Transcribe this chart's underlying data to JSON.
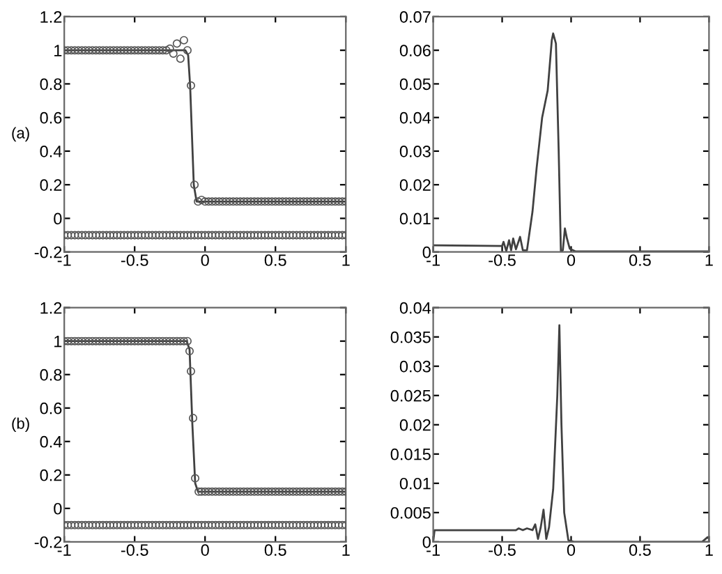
{
  "chart_data": [
    {
      "type": "line",
      "annotations": [
        "(a)"
      ],
      "xlim": [
        -1,
        1
      ],
      "ylim": [
        -0.2,
        1.2
      ],
      "xticks": [
        -1,
        -0.5,
        0,
        0.5,
        1
      ],
      "yticks": [
        -0.2,
        0,
        0.2,
        0.4,
        0.6,
        0.8,
        1,
        1.2
      ],
      "grid": false,
      "legend": false,
      "series": [
        {
          "type": "line",
          "color": "#404040",
          "x": [
            -1,
            -0.14,
            -0.12,
            -0.106,
            -0.08,
            -0.06,
            -0.05,
            1
          ],
          "values": [
            1,
            1,
            0.97,
            0.79,
            0.2,
            0.1,
            0.1,
            0.1
          ]
        },
        {
          "type": "scatter",
          "marker": "circle",
          "color": "#555555",
          "x": [
            -1,
            -0.975,
            -0.95,
            -0.925,
            -0.9,
            -0.875,
            -0.85,
            -0.825,
            -0.8,
            -0.775,
            -0.75,
            -0.725,
            -0.7,
            -0.675,
            -0.65,
            -0.625,
            -0.6,
            -0.575,
            -0.55,
            -0.525,
            -0.5,
            -0.475,
            -0.45,
            -0.425,
            -0.4,
            -0.375,
            -0.35,
            -0.325,
            -0.3,
            -0.275,
            -0.25,
            -0.225,
            -0.2,
            -0.175,
            -0.15,
            -0.125,
            -0.1,
            -0.075,
            -0.05,
            -0.025,
            0,
            0.025,
            0.05,
            0.075,
            0.1,
            0.125,
            0.15,
            0.175,
            0.2,
            0.225,
            0.25,
            0.275,
            0.3,
            0.325,
            0.35,
            0.375,
            0.4,
            0.425,
            0.45,
            0.475,
            0.5,
            0.525,
            0.55,
            0.575,
            0.6,
            0.625,
            0.65,
            0.675,
            0.7,
            0.725,
            0.75,
            0.775,
            0.8,
            0.825,
            0.85,
            0.875,
            0.9,
            0.925,
            0.95,
            0.975,
            1
          ],
          "values": [
            1,
            1,
            1,
            1,
            1,
            1,
            1,
            1,
            1,
            1,
            1,
            1,
            1,
            1,
            1,
            1,
            1,
            1,
            1,
            1,
            1,
            1,
            1,
            1,
            1,
            1,
            1,
            1,
            1,
            1.0,
            1.01,
            0.98,
            1.04,
            0.95,
            1.06,
            1.0,
            0.79,
            0.2,
            0.1,
            0.11,
            0.1,
            0.1,
            0.1,
            0.1,
            0.1,
            0.1,
            0.1,
            0.1,
            0.1,
            0.1,
            0.1,
            0.1,
            0.1,
            0.1,
            0.1,
            0.1,
            0.1,
            0.1,
            0.1,
            0.1,
            0.1,
            0.1,
            0.1,
            0.1,
            0.1,
            0.1,
            0.1,
            0.1,
            0.1,
            0.1,
            0.1,
            0.1,
            0.1,
            0.1,
            0.1,
            0.1,
            0.1,
            0.1,
            0.1,
            0.1,
            0.1
          ]
        },
        {
          "type": "scatter",
          "marker": "circle",
          "color": "#555555",
          "x": [
            -1,
            -0.975,
            -0.95,
            -0.925,
            -0.9,
            -0.875,
            -0.85,
            -0.825,
            -0.8,
            -0.775,
            -0.75,
            -0.725,
            -0.7,
            -0.675,
            -0.65,
            -0.625,
            -0.6,
            -0.575,
            -0.55,
            -0.525,
            -0.5,
            -0.475,
            -0.45,
            -0.425,
            -0.4,
            -0.375,
            -0.35,
            -0.325,
            -0.3,
            -0.275,
            -0.25,
            -0.225,
            -0.2,
            -0.175,
            -0.15,
            -0.125,
            -0.1,
            -0.075,
            -0.05,
            -0.025,
            0,
            0.025,
            0.05,
            0.075,
            0.1,
            0.125,
            0.15,
            0.175,
            0.2,
            0.225,
            0.25,
            0.275,
            0.3,
            0.325,
            0.35,
            0.375,
            0.4,
            0.425,
            0.45,
            0.475,
            0.5,
            0.525,
            0.55,
            0.575,
            0.6,
            0.625,
            0.65,
            0.675,
            0.7,
            0.725,
            0.75,
            0.775,
            0.8,
            0.825,
            0.85,
            0.875,
            0.9,
            0.925,
            0.95,
            0.975,
            1
          ],
          "values": [
            -0.1,
            -0.1,
            -0.1,
            -0.1,
            -0.1,
            -0.1,
            -0.1,
            -0.1,
            -0.1,
            -0.1,
            -0.1,
            -0.1,
            -0.1,
            -0.1,
            -0.1,
            -0.1,
            -0.1,
            -0.1,
            -0.1,
            -0.1,
            -0.1,
            -0.1,
            -0.1,
            -0.1,
            -0.1,
            -0.1,
            -0.1,
            -0.1,
            -0.1,
            -0.1,
            -0.1,
            -0.1,
            -0.1,
            -0.1,
            -0.1,
            -0.1,
            -0.1,
            -0.1,
            -0.1,
            -0.1,
            -0.1,
            -0.1,
            -0.1,
            -0.1,
            -0.1,
            -0.1,
            -0.1,
            -0.1,
            -0.1,
            -0.1,
            -0.1,
            -0.1,
            -0.1,
            -0.1,
            -0.1,
            -0.1,
            -0.1,
            -0.1,
            -0.1,
            -0.1,
            -0.1,
            -0.1,
            -0.1,
            -0.1,
            -0.1,
            -0.1,
            -0.1,
            -0.1,
            -0.1,
            -0.1,
            -0.1,
            -0.1,
            -0.1,
            -0.1,
            -0.1,
            -0.1,
            -0.1,
            -0.1,
            -0.1,
            -0.1,
            -0.1
          ]
        }
      ]
    },
    {
      "type": "line",
      "xlim": [
        -1,
        1
      ],
      "ylim": [
        0,
        0.07
      ],
      "xticks": [
        -1,
        -0.5,
        0,
        0.5,
        1
      ],
      "yticks": [
        0,
        0.01,
        0.02,
        0.03,
        0.04,
        0.05,
        0.06,
        0.07
      ],
      "grid": false,
      "legend": false,
      "series": [
        {
          "type": "line",
          "color": "#404040",
          "x": [
            -1,
            -0.5,
            -0.49,
            -0.47,
            -0.45,
            -0.435,
            -0.42,
            -0.4,
            -0.37,
            -0.35,
            -0.32,
            -0.28,
            -0.25,
            -0.21,
            -0.17,
            -0.14,
            -0.13,
            -0.11,
            -0.09,
            -0.074,
            -0.06,
            -0.045,
            -0.03,
            -0.01,
            0.03,
            1
          ],
          "values": [
            0.002,
            0.0018,
            0.003,
            0.0003,
            0.0035,
            0.0005,
            0.004,
            0.0008,
            0.0045,
            0.0005,
            0.0005,
            0.012,
            0.025,
            0.04,
            0.048,
            0.063,
            0.065,
            0.062,
            0.03,
            0,
            0.0005,
            0.007,
            0.004,
            0.001,
            0.0002,
            0.0002
          ]
        }
      ]
    },
    {
      "type": "line",
      "annotations": [
        "(b)"
      ],
      "xlim": [
        -1,
        1
      ],
      "ylim": [
        -0.2,
        1.2
      ],
      "xticks": [
        -1,
        -0.5,
        0,
        0.5,
        1
      ],
      "yticks": [
        -0.2,
        0,
        0.2,
        0.4,
        0.6,
        0.8,
        1,
        1.2
      ],
      "grid": false,
      "legend": false,
      "series": [
        {
          "type": "line",
          "color": "#404040",
          "x": [
            -1,
            -0.13,
            -0.11,
            -0.09,
            -0.07,
            -0.05,
            1
          ],
          "values": [
            1,
            1,
            0.95,
            0.5,
            0.15,
            0.1,
            0.1
          ]
        },
        {
          "type": "scatter",
          "marker": "circle",
          "color": "#555555",
          "x": [
            -1,
            -0.975,
            -0.95,
            -0.925,
            -0.9,
            -0.875,
            -0.85,
            -0.825,
            -0.8,
            -0.775,
            -0.75,
            -0.725,
            -0.7,
            -0.675,
            -0.65,
            -0.625,
            -0.6,
            -0.575,
            -0.55,
            -0.525,
            -0.5,
            -0.475,
            -0.45,
            -0.425,
            -0.4,
            -0.375,
            -0.35,
            -0.325,
            -0.3,
            -0.275,
            -0.25,
            -0.225,
            -0.2,
            -0.175,
            -0.15,
            -0.125,
            -0.11,
            -0.1,
            -0.085,
            -0.07,
            -0.045,
            -0.025,
            0,
            0.025,
            0.05,
            0.075,
            0.1,
            0.125,
            0.15,
            0.175,
            0.2,
            0.225,
            0.25,
            0.275,
            0.3,
            0.325,
            0.35,
            0.375,
            0.4,
            0.425,
            0.45,
            0.475,
            0.5,
            0.525,
            0.55,
            0.575,
            0.6,
            0.625,
            0.65,
            0.675,
            0.7,
            0.725,
            0.75,
            0.775,
            0.8,
            0.825,
            0.85,
            0.875,
            0.9,
            0.925,
            0.95,
            0.975,
            1
          ],
          "values": [
            1,
            1,
            1,
            1,
            1,
            1,
            1,
            1,
            1,
            1,
            1,
            1,
            1,
            1,
            1,
            1,
            1,
            1,
            1,
            1,
            1,
            1,
            1,
            1,
            1,
            1,
            1,
            1,
            1,
            1,
            1,
            1,
            1,
            1,
            1,
            1.0,
            0.94,
            0.82,
            0.54,
            0.18,
            0.1,
            0.1,
            0.1,
            0.1,
            0.1,
            0.1,
            0.1,
            0.1,
            0.1,
            0.1,
            0.1,
            0.1,
            0.1,
            0.1,
            0.1,
            0.1,
            0.1,
            0.1,
            0.1,
            0.1,
            0.1,
            0.1,
            0.1,
            0.1,
            0.1,
            0.1,
            0.1,
            0.1,
            0.1,
            0.1,
            0.1,
            0.1,
            0.1,
            0.1,
            0.1,
            0.1,
            0.1,
            0.1,
            0.1,
            0.1,
            0.1,
            0.1,
            0.1
          ]
        },
        {
          "type": "scatter",
          "marker": "circle",
          "color": "#555555",
          "x": [
            -1,
            -0.975,
            -0.95,
            -0.925,
            -0.9,
            -0.875,
            -0.85,
            -0.825,
            -0.8,
            -0.775,
            -0.75,
            -0.725,
            -0.7,
            -0.675,
            -0.65,
            -0.625,
            -0.6,
            -0.575,
            -0.55,
            -0.525,
            -0.5,
            -0.475,
            -0.45,
            -0.425,
            -0.4,
            -0.375,
            -0.35,
            -0.325,
            -0.3,
            -0.275,
            -0.25,
            -0.225,
            -0.2,
            -0.175,
            -0.15,
            -0.125,
            -0.1,
            -0.075,
            -0.05,
            -0.025,
            0,
            0.025,
            0.05,
            0.075,
            0.1,
            0.125,
            0.15,
            0.175,
            0.2,
            0.225,
            0.25,
            0.275,
            0.3,
            0.325,
            0.35,
            0.375,
            0.4,
            0.425,
            0.45,
            0.475,
            0.5,
            0.525,
            0.55,
            0.575,
            0.6,
            0.625,
            0.65,
            0.675,
            0.7,
            0.725,
            0.75,
            0.775,
            0.8,
            0.825,
            0.85,
            0.875,
            0.9,
            0.925,
            0.95,
            0.975,
            1
          ],
          "values": [
            -0.1,
            -0.1,
            -0.1,
            -0.1,
            -0.1,
            -0.1,
            -0.1,
            -0.1,
            -0.1,
            -0.1,
            -0.1,
            -0.1,
            -0.1,
            -0.1,
            -0.1,
            -0.1,
            -0.1,
            -0.1,
            -0.1,
            -0.1,
            -0.1,
            -0.1,
            -0.1,
            -0.1,
            -0.1,
            -0.1,
            -0.1,
            -0.1,
            -0.1,
            -0.1,
            -0.1,
            -0.1,
            -0.1,
            -0.1,
            -0.1,
            -0.1,
            -0.1,
            -0.1,
            -0.1,
            -0.1,
            -0.1,
            -0.1,
            -0.1,
            -0.1,
            -0.1,
            -0.1,
            -0.1,
            -0.1,
            -0.1,
            -0.1,
            -0.1,
            -0.1,
            -0.1,
            -0.1,
            -0.1,
            -0.1,
            -0.1,
            -0.1,
            -0.1,
            -0.1,
            -0.1,
            -0.1,
            -0.1,
            -0.1,
            -0.1,
            -0.1,
            -0.1,
            -0.1,
            -0.1,
            -0.1,
            -0.1,
            -0.1,
            -0.1,
            -0.1,
            -0.1,
            -0.1,
            -0.1,
            -0.1,
            -0.1,
            -0.1,
            -0.1
          ]
        }
      ]
    },
    {
      "type": "line",
      "xlim": [
        -1,
        1
      ],
      "ylim": [
        0,
        0.04
      ],
      "xticks": [
        -1,
        -0.5,
        0,
        0.5,
        1
      ],
      "yticks": [
        0,
        0.005,
        0.01,
        0.015,
        0.02,
        0.025,
        0.03,
        0.035,
        0.04
      ],
      "grid": false,
      "legend": false,
      "series": [
        {
          "type": "line",
          "color": "#404040",
          "x": [
            -1,
            -0.99,
            -0.4,
            -0.38,
            -0.35,
            -0.32,
            -0.28,
            -0.26,
            -0.24,
            -0.22,
            -0.2,
            -0.18,
            -0.16,
            -0.13,
            -0.1,
            -0.085,
            -0.07,
            -0.05,
            -0.02,
            0.02,
            0.95,
            0.99,
            1
          ],
          "values": [
            0,
            0.002,
            0.002,
            0.0023,
            0.002,
            0.0023,
            0.002,
            0.003,
            0.0005,
            0.0025,
            0.0055,
            0.0005,
            0.0025,
            0.009,
            0.025,
            0.037,
            0.02,
            0.005,
            0.0003,
            0,
            0,
            0.0008,
            0.0005
          ]
        }
      ]
    }
  ]
}
